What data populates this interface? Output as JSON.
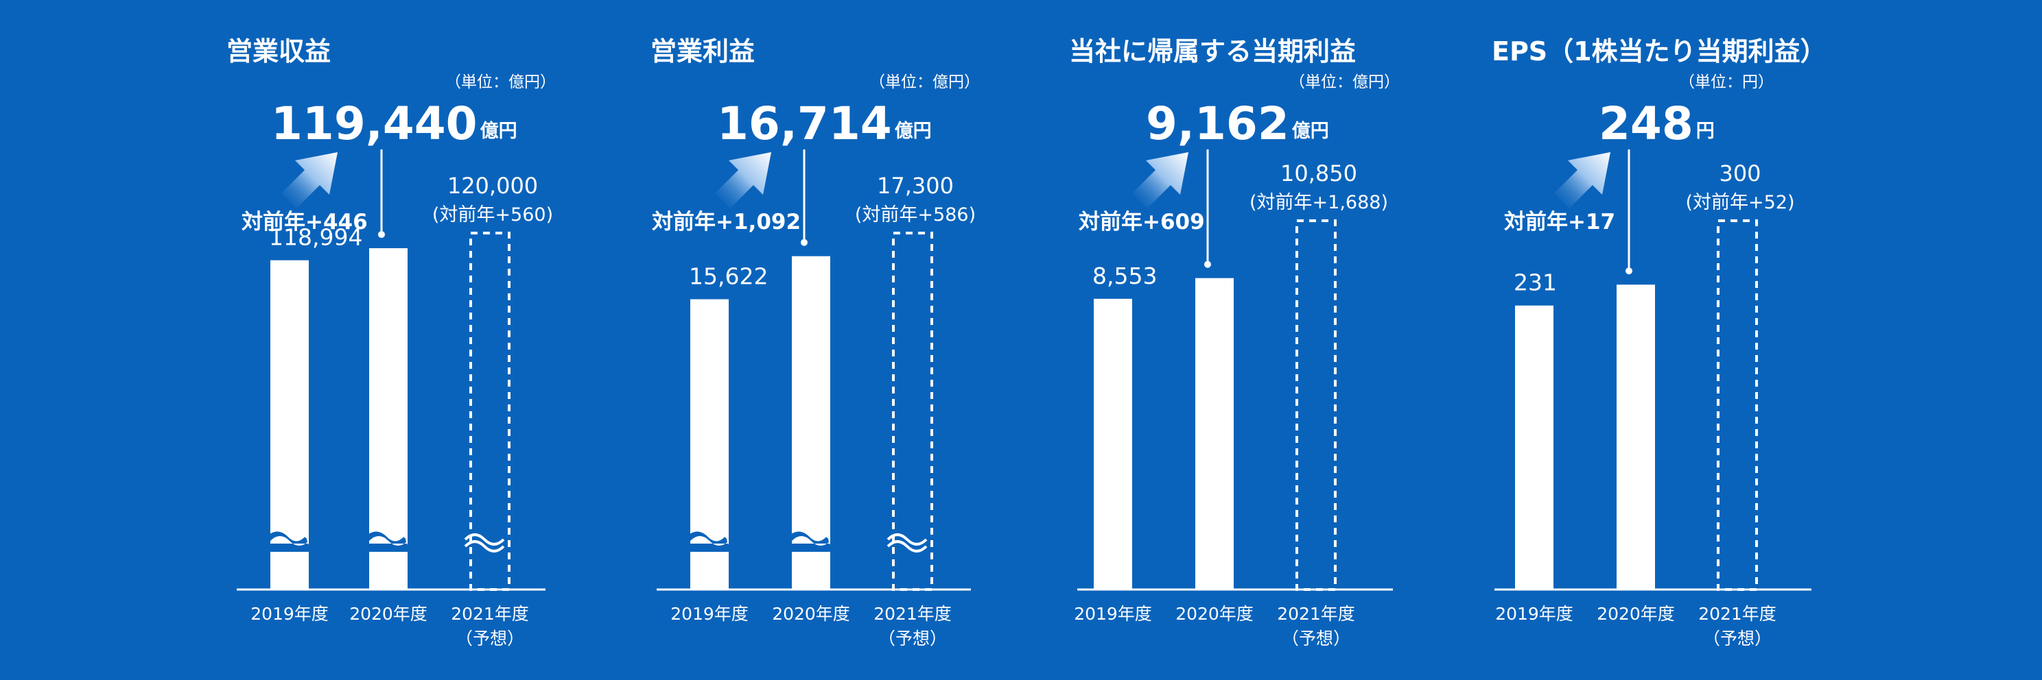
{
  "colors": {
    "background": "#0a63bb",
    "foreground": "#ffffff",
    "arrow_gradient_light": "#ffffff",
    "arrow_gradient_dark": "#2a6fc4"
  },
  "icons": {
    "growth_arrow": "up-right-arrow-icon",
    "axis_break": "wave-break-icon"
  },
  "chart_data": [
    {
      "type": "bar",
      "title": "営業収益",
      "unit_note": "（単位：億円）",
      "headline_value": "119,440",
      "headline_unit": "億円",
      "change_label": "対前年+446",
      "categories": [
        "2019年度",
        "2020年度",
        "2021年度"
      ],
      "category_sublabels": [
        "",
        "",
        "（予想）"
      ],
      "values": [
        118994,
        119440,
        120000
      ],
      "value_labels": [
        "118,994",
        "",
        "120,000"
      ],
      "forecast_change_label": "(対前年+560)",
      "forecast_index": 2,
      "axis_break": true
    },
    {
      "type": "bar",
      "title": "営業利益",
      "unit_note": "（単位：億円）",
      "headline_value": "16,714",
      "headline_unit": "億円",
      "change_label": "対前年+1,092",
      "categories": [
        "2019年度",
        "2020年度",
        "2021年度"
      ],
      "category_sublabels": [
        "",
        "",
        "（予想）"
      ],
      "values": [
        15622,
        16714,
        17300
      ],
      "value_labels": [
        "15,622",
        "",
        "17,300"
      ],
      "forecast_change_label": "(対前年+586)",
      "forecast_index": 2,
      "axis_break": true
    },
    {
      "type": "bar",
      "title": "当社に帰属する当期利益",
      "unit_note": "（単位：億円）",
      "headline_value": "9,162",
      "headline_unit": "億円",
      "change_label": "対前年+609",
      "categories": [
        "2019年度",
        "2020年度",
        "2021年度"
      ],
      "category_sublabels": [
        "",
        "",
        "（予想）"
      ],
      "values": [
        8553,
        9162,
        10850
      ],
      "value_labels": [
        "8,553",
        "",
        "10,850"
      ],
      "forecast_change_label": "(対前年+1,688)",
      "forecast_index": 2,
      "axis_break": false
    },
    {
      "type": "bar",
      "title": "EPS（1株当たり当期利益）",
      "unit_note": "（単位：円）",
      "headline_value": "248",
      "headline_unit": "円",
      "change_label": "対前年+17",
      "categories": [
        "2019年度",
        "2020年度",
        "2021年度"
      ],
      "category_sublabels": [
        "",
        "",
        "（予想）"
      ],
      "values": [
        231,
        248,
        300
      ],
      "value_labels": [
        "231",
        "",
        "300"
      ],
      "forecast_change_label": "(対前年+52)",
      "forecast_index": 2,
      "axis_break": false
    }
  ]
}
